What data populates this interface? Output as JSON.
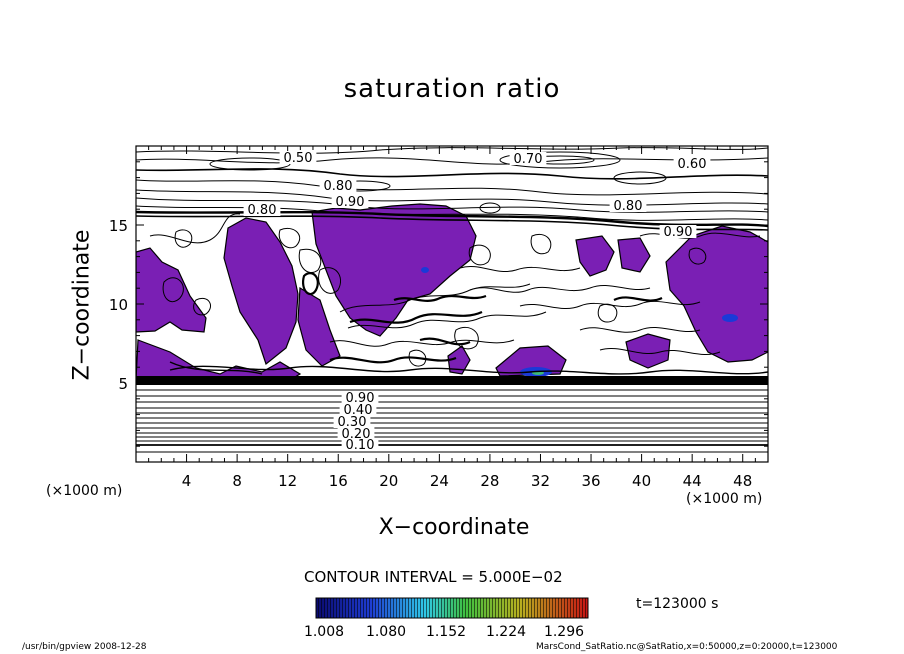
{
  "chart_data": {
    "type": "contour",
    "title": "saturation ratio",
    "xlabel": "X−coordinate",
    "ylabel": "Z−coordinate",
    "x_unit": "(×1000 m)",
    "z_unit": "(×1000 m)",
    "xlim": [
      0,
      50
    ],
    "ylim": [
      0,
      20
    ],
    "x_ticks": [
      4,
      8,
      12,
      16,
      20,
      24,
      28,
      32,
      36,
      40,
      44,
      48
    ],
    "y_ticks": [
      5,
      10,
      15
    ],
    "contour_interval_text": "CONTOUR INTERVAL = 5.000E−02",
    "contour_labels": [
      "0.50",
      "0.70",
      "0.60",
      "0.80",
      "0.90",
      "0.80",
      "0.80",
      "0.90",
      "0.90",
      "0.40",
      "0.30",
      "0.20",
      "0.10"
    ],
    "colorbar_ticks": [
      "1.008",
      "1.080",
      "1.152",
      "1.224",
      "1.296"
    ],
    "time_text": "t=123000 s",
    "supersaturated_color": "#7a1fb4"
  },
  "footer": {
    "left": "/usr/bin/gpview   2008-12-28",
    "right": "MarsCond_SatRatio.nc@SatRatio,x=0:50000,z=0:20000,t=123000"
  }
}
